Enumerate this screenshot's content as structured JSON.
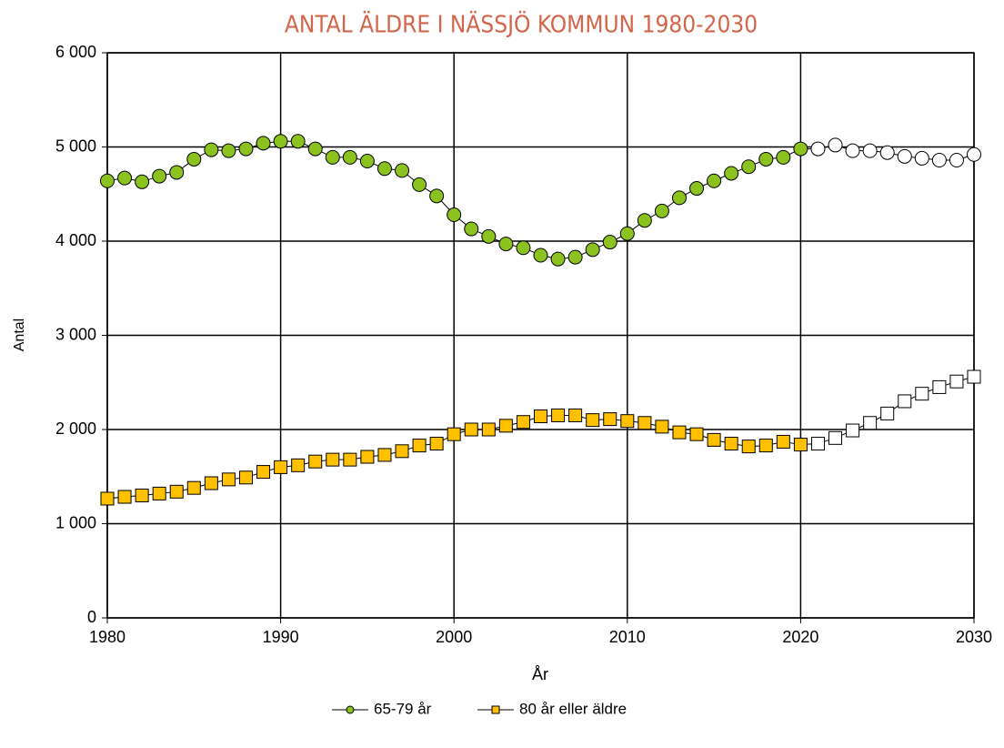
{
  "chart_data": {
    "type": "line",
    "title": "ANTAL ÄLDRE I NÄSSJÖ KOMMUN 1980-2030",
    "x_label": "År",
    "y_label": "Antal",
    "x": [
      1980,
      1981,
      1982,
      1983,
      1984,
      1985,
      1986,
      1987,
      1988,
      1989,
      1990,
      1991,
      1992,
      1993,
      1994,
      1995,
      1996,
      1997,
      1998,
      1999,
      2000,
      2001,
      2002,
      2003,
      2004,
      2005,
      2006,
      2007,
      2008,
      2009,
      2010,
      2011,
      2012,
      2013,
      2014,
      2015,
      2016,
      2017,
      2018,
      2019,
      2020,
      2021,
      2022,
      2023,
      2024,
      2025,
      2026,
      2027,
      2028,
      2029,
      2030
    ],
    "series": [
      {
        "name": "65-79 år",
        "color": "#8cc21f",
        "marker": "circle",
        "values": [
          4640,
          4670,
          4630,
          4690,
          4730,
          4870,
          4970,
          4960,
          4980,
          5040,
          5060,
          5060,
          4980,
          4890,
          4890,
          4850,
          4770,
          4750,
          4600,
          4480,
          4280,
          4130,
          4050,
          3970,
          3930,
          3850,
          3810,
          3830,
          3910,
          3990,
          4080,
          4220,
          4320,
          4460,
          4560,
          4640,
          4720,
          4790,
          4870,
          4890,
          4980,
          4980,
          5020,
          4960,
          4960,
          4940,
          4900,
          4880,
          4860,
          4860,
          4920
        ]
      },
      {
        "name": "80 år eller äldre",
        "color": "#ffc000",
        "marker": "square",
        "values": [
          1266,
          1285,
          1300,
          1320,
          1340,
          1380,
          1430,
          1470,
          1490,
          1550,
          1600,
          1620,
          1660,
          1680,
          1680,
          1710,
          1730,
          1770,
          1830,
          1850,
          1950,
          2000,
          2000,
          2040,
          2080,
          2140,
          2150,
          2150,
          2100,
          2110,
          2090,
          2070,
          2030,
          1970,
          1950,
          1890,
          1850,
          1820,
          1830,
          1870,
          1840,
          1850,
          1910,
          1990,
          2070,
          2170,
          2300,
          2380,
          2450,
          2510,
          2560
        ]
      }
    ],
    "hollow_markers_from": 2021,
    "xlim": [
      1980,
      2030
    ],
    "xticks": [
      1980,
      1990,
      2000,
      2010,
      2020,
      2030
    ],
    "ylim": [
      0,
      6000
    ],
    "yticks": [
      0,
      {
        "value": 1000,
        "label": "1 000"
      },
      {
        "value": 2000,
        "label": "2 000"
      },
      {
        "value": 3000,
        "label": "3 000"
      },
      {
        "value": 4000,
        "label": "4 000"
      },
      {
        "value": 5000,
        "label": "5 000"
      },
      {
        "value": 6000,
        "label": "6 000"
      }
    ],
    "grid": true,
    "legend": "bottom"
  }
}
